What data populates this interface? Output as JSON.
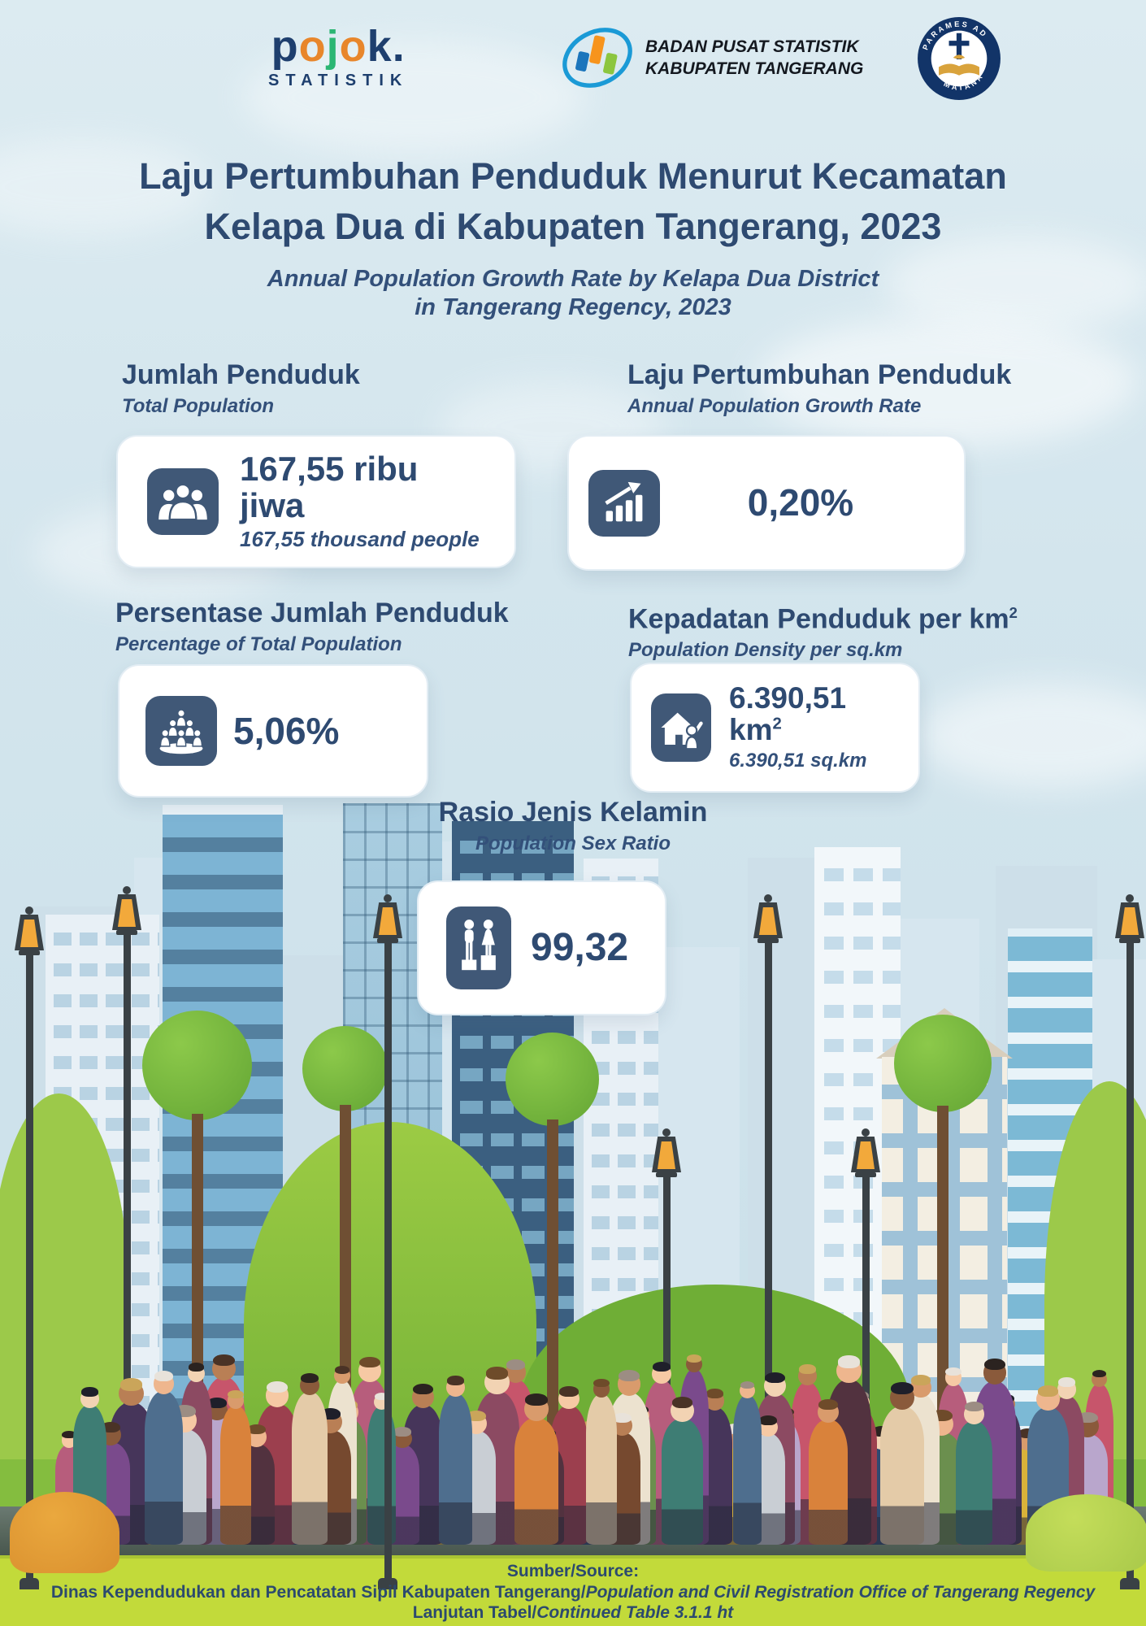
{
  "header": {
    "pojok": {
      "l1": "p",
      "l2": "o",
      "l3": "j",
      "l4": "o",
      "l5": "k",
      "dot": ".",
      "subtitle": "STATISTIK"
    },
    "bps": {
      "line1": "BADAN PUSAT STATISTIK",
      "line2": "KABUPATEN TANGERANG"
    },
    "matana": {
      "arc_top": "PARAMES AD",
      "arc_bottom": "MATANA"
    }
  },
  "title": {
    "line1": "Laju Pertumbuhan Penduduk Menurut Kecamatan",
    "line2": "Kelapa Dua di Kabupaten Tangerang, 2023",
    "subtitle_line1": "Annual Population Growth Rate by Kelapa Dua District",
    "subtitle_line2": "in Tangerang Regency, 2023"
  },
  "stats": {
    "total_population": {
      "title": "Jumlah Penduduk",
      "subtitle": "Total Population",
      "value": "167,55 ribu jiwa",
      "value_sub": "167,55 thousand people"
    },
    "growth_rate": {
      "title": "Laju Pertumbuhan Penduduk",
      "subtitle": "Annual Population Growth Rate",
      "value": "0,20%"
    },
    "percentage": {
      "title": "Persentase Jumlah Penduduk",
      "subtitle": "Percentage of Total Population",
      "value": "5,06%"
    },
    "density": {
      "title": "Kepadatan Penduduk per km",
      "title_sup": "2",
      "subtitle": "Population Density per sq.km",
      "value": "6.390,51 km",
      "value_sup": "2",
      "value_sub": "6.390,51 sq.km"
    }
  },
  "sex_ratio": {
    "title": "Rasio Jenis Kelamin",
    "subtitle": "Population Sex Ratio",
    "value": "99,32"
  },
  "footer": {
    "source_label": "Sumber/Source:",
    "source_text_id": "Dinas Kependudukan dan Pencatatan Sipil Kabupaten Tangerang/",
    "source_text_en": "Population and Civil Registration Office of Tangerang Regency",
    "continued_id": "Lanjutan Tabel/",
    "continued_en": "Continued Table 3.1.1 ht"
  },
  "colors": {
    "navy": "#2e4a71",
    "badge_navy": "#405877",
    "sky": "#d3e5ed",
    "grass": "#c2da3a",
    "pojok_orange": "#e8862b",
    "pojok_green": "#2bb673"
  }
}
